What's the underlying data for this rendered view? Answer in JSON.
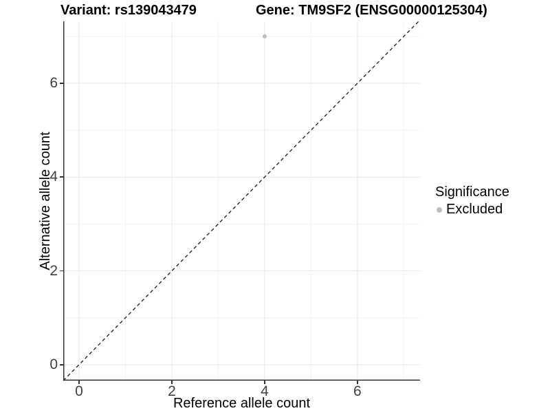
{
  "chart_data": {
    "type": "scatter",
    "title_left": "Variant: rs139043479",
    "title_right": "Gene: TM9SF2 (ENSG00000125304)",
    "xlabel": "Reference allele count",
    "ylabel": "Alternative allele count",
    "x_ticks": [
      0,
      2,
      4,
      6
    ],
    "y_ticks": [
      0,
      2,
      4,
      6
    ],
    "x_minor_ticks": [
      1,
      3,
      5,
      7
    ],
    "y_minor_ticks": [
      1,
      3,
      5,
      7
    ],
    "xlim": [
      -0.34,
      7.35
    ],
    "ylim": [
      -0.34,
      7.32
    ],
    "grid": true,
    "identity_line": {
      "style": "dashed",
      "from": [
        -0.34,
        -0.34
      ],
      "to": [
        7.32,
        7.32
      ]
    },
    "points": [
      {
        "x": 4,
        "y": 7,
        "series": "Excluded"
      }
    ],
    "legend": {
      "position": "right",
      "title": "Significance",
      "items": [
        {
          "label": "Excluded",
          "color": "#bebebe"
        }
      ]
    },
    "colors": {
      "point": "#bebebe",
      "grid_major": "#e6e6e6",
      "grid_minor": "#f2f2f2",
      "axis_line": "#333333",
      "identity_line": "#1a1a1a"
    }
  }
}
